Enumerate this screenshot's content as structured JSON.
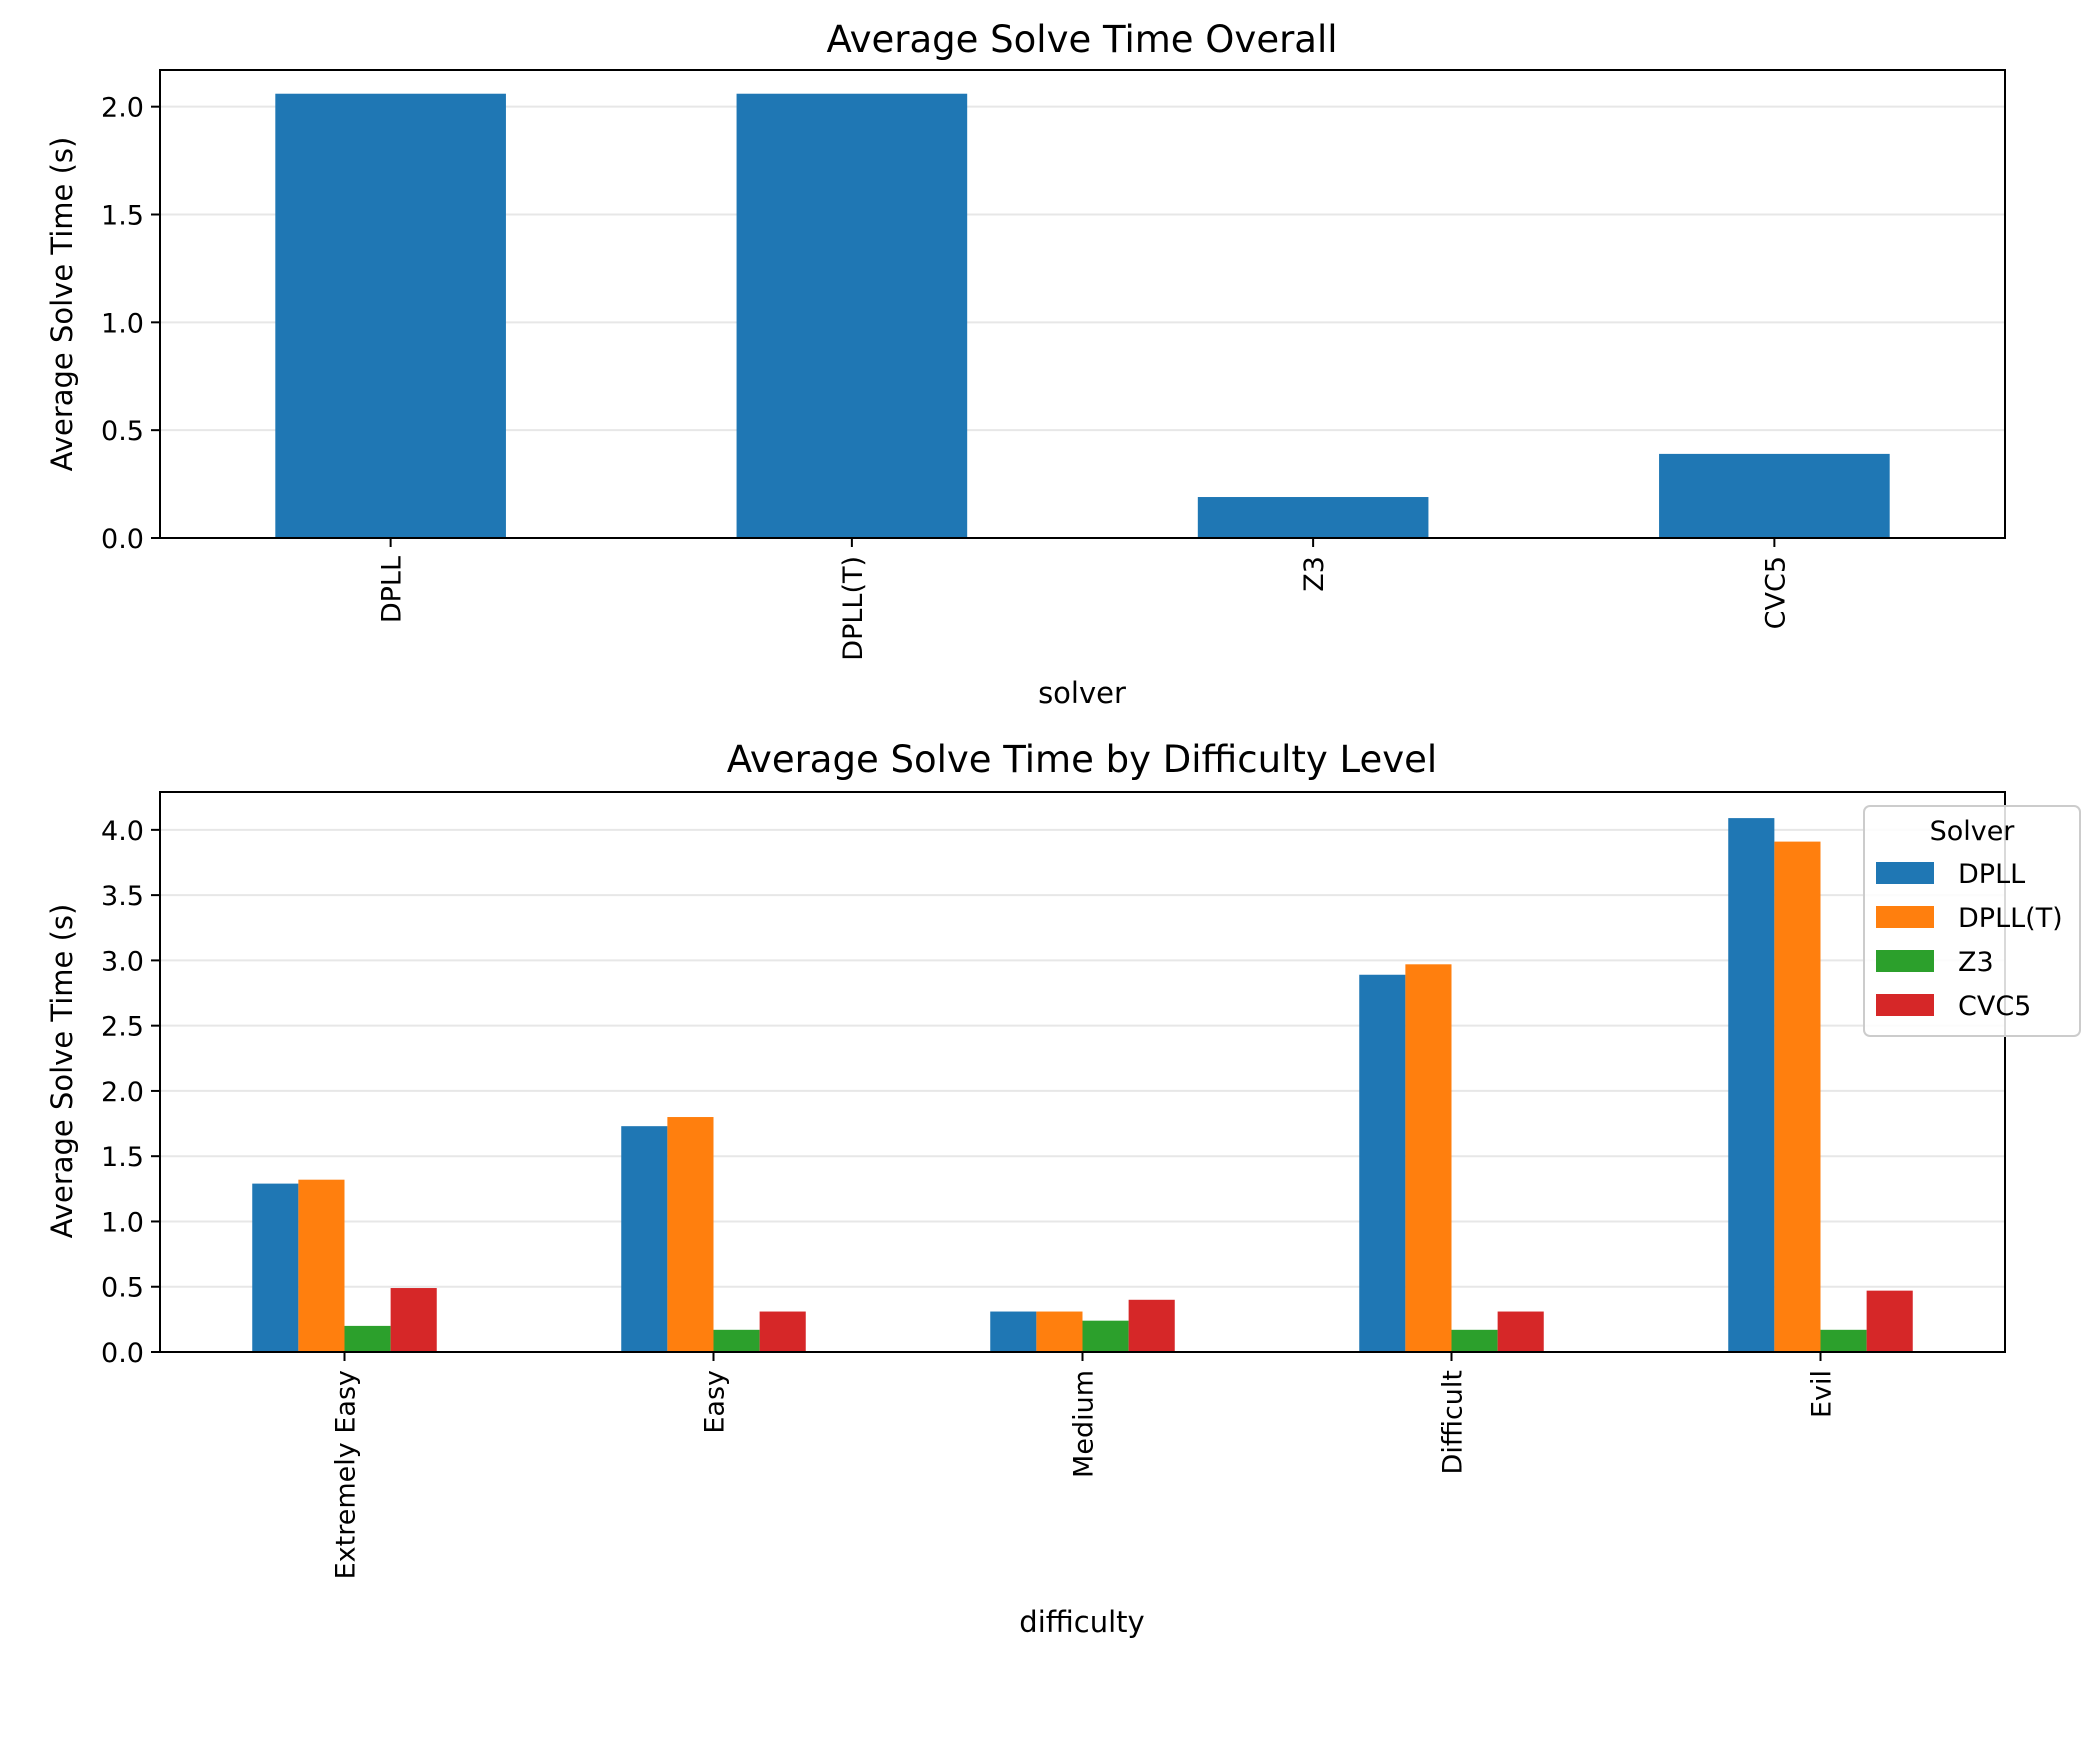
{
  "chart_data": [
    {
      "type": "bar",
      "title": "Average Solve Time Overall",
      "xlabel": "solver",
      "ylabel": "Average Solve Time (s)",
      "categories": [
        "DPLL",
        "DPLL(T)",
        "Z3",
        "CVC5"
      ],
      "values": [
        2.06,
        2.06,
        0.19,
        0.39
      ],
      "ylim": [
        0,
        2.17
      ],
      "yticks": [
        "0.0",
        "0.5",
        "1.0",
        "1.5",
        "2.0"
      ],
      "grid": true,
      "color": "#1f77b4"
    },
    {
      "type": "bar",
      "title": "Average Solve Time by Difficulty Level",
      "xlabel": "difficulty",
      "ylabel": "Average Solve Time (s)",
      "categories": [
        "Extremely Easy",
        "Easy",
        "Medium",
        "Difficult",
        "Evil"
      ],
      "series": [
        {
          "name": "DPLL",
          "color": "#1f77b4",
          "values": [
            1.29,
            1.73,
            0.31,
            2.89,
            4.09
          ]
        },
        {
          "name": "DPLL(T)",
          "color": "#ff7f0e",
          "values": [
            1.32,
            1.8,
            0.31,
            2.97,
            3.91
          ]
        },
        {
          "name": "Z3",
          "color": "#2ca02c",
          "values": [
            0.2,
            0.17,
            0.24,
            0.17,
            0.17
          ]
        },
        {
          "name": "CVC5",
          "color": "#d62728",
          "values": [
            0.49,
            0.31,
            0.4,
            0.31,
            0.47
          ]
        }
      ],
      "ylim": [
        0,
        4.29
      ],
      "yticks": [
        "0.0",
        "0.5",
        "1.0",
        "1.5",
        "2.0",
        "2.5",
        "3.0",
        "3.5",
        "4.0"
      ],
      "grid": true,
      "legend_title": "Solver",
      "legend_placement": "upper-right"
    }
  ]
}
